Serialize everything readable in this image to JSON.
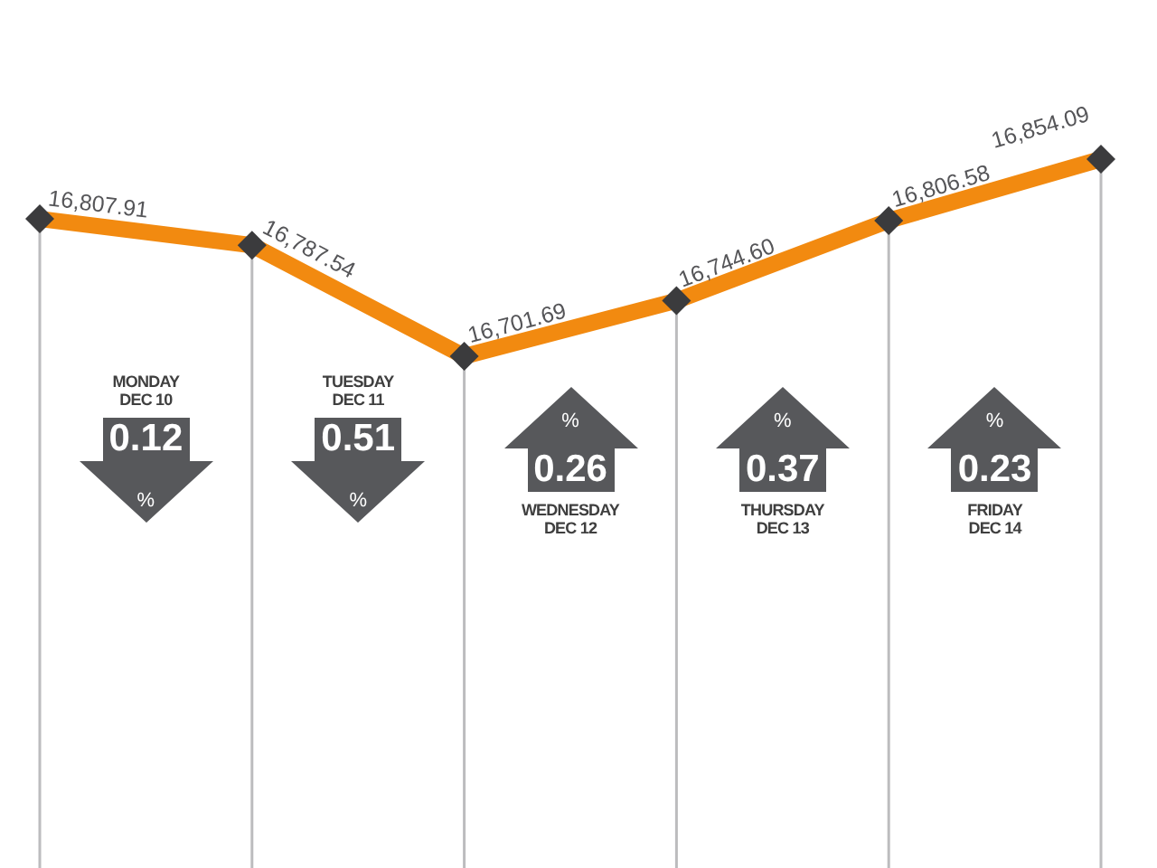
{
  "chart_data": {
    "type": "line",
    "categories": [
      null,
      null,
      null,
      null,
      null,
      null
    ],
    "values": [
      16807.91,
      16787.54,
      16701.69,
      16744.6,
      16806.58,
      16854.09
    ],
    "value_labels": [
      "16,807.91",
      "16,787.54",
      "16,701.69",
      "16,744.60",
      "16,806.58",
      "16,854.09"
    ],
    "color": "#f28a10",
    "marker": "diamond",
    "line_style": "solid",
    "grid": "x",
    "tick_labels": false,
    "annotations": [
      "MONDAY\nDEC 10",
      "0.12",
      "%",
      "TUESDAY\nDEC 11",
      "0.51",
      "%",
      "WEDNESDAY\nDEC 12",
      "0.26",
      "%",
      "THURSDAY\nDEC 13",
      "0.37",
      "%",
      "FRIDAY\nDEC 14",
      "0.23",
      "%"
    ]
  }
}
